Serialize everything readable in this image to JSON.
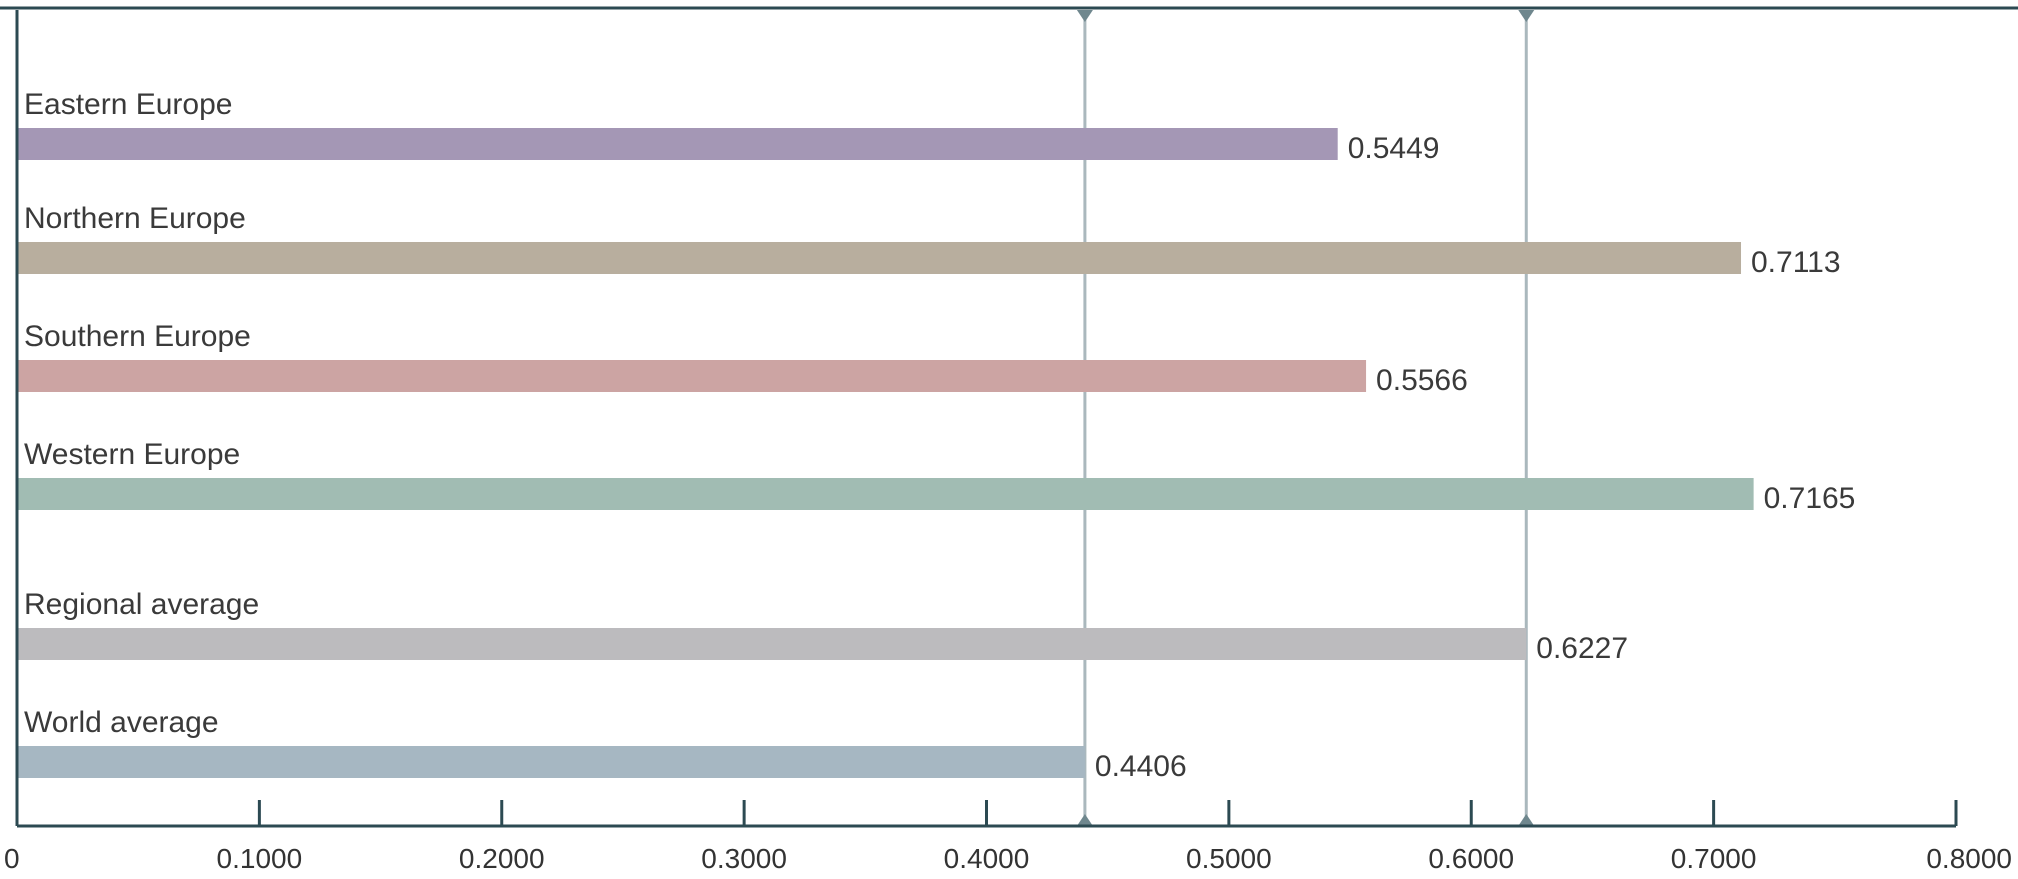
{
  "chart_data": {
    "type": "bar",
    "orientation": "horizontal",
    "title": "",
    "xlabel": "",
    "ylabel": "",
    "categories": [
      "Eastern Europe",
      "Northern Europe",
      "Southern Europe",
      "Western Europe",
      "Regional average",
      "World average"
    ],
    "values": [
      0.5449,
      0.7113,
      0.5566,
      0.7165,
      0.6227,
      0.4406
    ],
    "value_labels": [
      "0.5449",
      "0.7113",
      "0.5566",
      "0.7165",
      "0.6227",
      "0.4406"
    ],
    "bar_colors": [
      "#a497b5",
      "#b8ae9e",
      "#cca4a3",
      "#a1bcb3",
      "#bcbbbe",
      "#a6b7c2"
    ],
    "xlim": [
      0,
      0.8
    ],
    "x_ticks": [
      0,
      0.1,
      0.2,
      0.3,
      0.4,
      0.5,
      0.6,
      0.7,
      0.8
    ],
    "x_tick_labels": [
      "0",
      "0.1000",
      "0.2000",
      "0.3000",
      "0.4000",
      "0.5000",
      "0.6000",
      "0.7000",
      "0.8000"
    ],
    "reference_lines": [
      0.4406,
      0.6227
    ],
    "grid": false,
    "legend": "none"
  },
  "colors": {
    "axis": "#2c4a52",
    "reference_line": "#aab8bd",
    "text": "#3a3a3a"
  }
}
